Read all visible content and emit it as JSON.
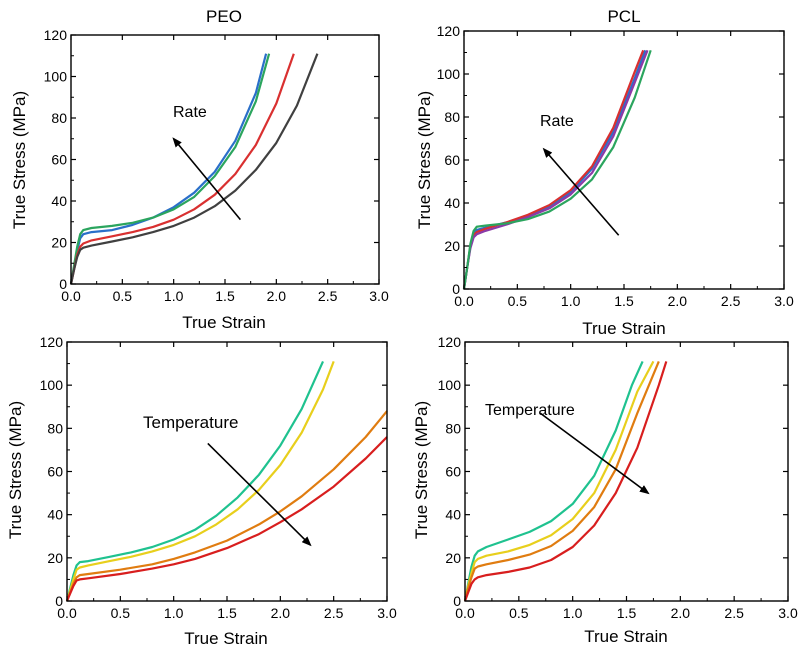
{
  "chart_data": [
    {
      "type": "line",
      "title": "PEO",
      "xlabel": "True Strain",
      "ylabel": "True Stress (MPa)",
      "xlim": [
        0,
        3.0
      ],
      "ylim": [
        0,
        120
      ],
      "xticks": [
        "0.0",
        "0.5",
        "1.0",
        "1.5",
        "2.0",
        "2.5",
        "3.0"
      ],
      "yticks": [
        "0",
        "20",
        "40",
        "60",
        "80",
        "100",
        "120"
      ],
      "grid": false,
      "annotation": {
        "text": "Rate",
        "arrow_from": [
          1.65,
          31
        ],
        "arrow_to": [
          1.0,
          70
        ]
      },
      "series": [
        {
          "color": "#2a6fc9",
          "x": [
            0,
            0.03,
            0.06,
            0.09,
            0.12,
            0.2,
            0.4,
            0.6,
            0.8,
            1.0,
            1.2,
            1.4,
            1.6,
            1.8,
            1.9
          ],
          "y": [
            0,
            8,
            16,
            22,
            24,
            25,
            26,
            28.5,
            32,
            37,
            44,
            54,
            69,
            92,
            111
          ]
        },
        {
          "color": "#2ba55e",
          "x": [
            0,
            0.03,
            0.06,
            0.09,
            0.12,
            0.2,
            0.4,
            0.6,
            0.8,
            1.0,
            1.2,
            1.4,
            1.6,
            1.8,
            1.93
          ],
          "y": [
            0,
            9,
            18,
            24,
            26,
            27,
            28,
            29.5,
            32,
            36,
            42,
            52,
            66,
            88,
            111
          ]
        },
        {
          "color": "#d93030",
          "x": [
            0,
            0.03,
            0.06,
            0.09,
            0.12,
            0.2,
            0.4,
            0.6,
            0.8,
            1.0,
            1.2,
            1.4,
            1.6,
            1.8,
            2.0,
            2.17
          ],
          "y": [
            0,
            7,
            14,
            18,
            19.5,
            21,
            23,
            25,
            27.5,
            31,
            36,
            43,
            53,
            67,
            87,
            111
          ]
        },
        {
          "color": "#404040",
          "x": [
            0,
            0.03,
            0.06,
            0.09,
            0.12,
            0.2,
            0.4,
            0.6,
            0.8,
            1.0,
            1.2,
            1.4,
            1.6,
            1.8,
            2.0,
            2.2,
            2.4
          ],
          "y": [
            0,
            7,
            13,
            16.5,
            17.5,
            18.5,
            20.5,
            22.5,
            25,
            28,
            32,
            37.5,
            45,
            55,
            68,
            86,
            111
          ]
        }
      ]
    },
    {
      "type": "line",
      "title": "PCL",
      "xlabel": "True Strain",
      "ylabel": "True Stress (MPa)",
      "xlim": [
        0,
        3.0
      ],
      "ylim": [
        0,
        120
      ],
      "xticks": [
        "0.0",
        "0.5",
        "1.0",
        "1.5",
        "2.0",
        "2.5",
        "3.0"
      ],
      "yticks": [
        "0",
        "20",
        "40",
        "60",
        "80",
        "100",
        "120"
      ],
      "grid": false,
      "annotation": {
        "text": "Rate",
        "arrow_from": [
          1.45,
          25
        ],
        "arrow_to": [
          0.75,
          65
        ]
      },
      "series": [
        {
          "color": "#2a6fc9",
          "x": [
            0,
            0.03,
            0.06,
            0.09,
            0.12,
            0.2,
            0.4,
            0.6,
            0.8,
            1.0,
            1.2,
            1.4,
            1.6,
            1.7
          ],
          "y": [
            0,
            10,
            20,
            26,
            27.5,
            28.5,
            31,
            34,
            38,
            45,
            56,
            73,
            98,
            111
          ]
        },
        {
          "color": "#d93030",
          "x": [
            0,
            0.03,
            0.06,
            0.09,
            0.12,
            0.2,
            0.4,
            0.6,
            0.8,
            1.0,
            1.2,
            1.4,
            1.6,
            1.68
          ],
          "y": [
            0,
            10,
            20,
            25,
            26.5,
            28,
            31,
            34.5,
            39,
            46,
            57,
            75,
            101,
            111
          ]
        },
        {
          "color": "#8a3aa8",
          "x": [
            0,
            0.03,
            0.06,
            0.09,
            0.12,
            0.2,
            0.4,
            0.6,
            0.8,
            1.0,
            1.2,
            1.4,
            1.6,
            1.72
          ],
          "y": [
            0,
            10,
            19,
            24,
            25.5,
            27,
            30,
            33.5,
            37.5,
            44,
            54,
            71,
            96,
            111
          ]
        },
        {
          "color": "#2ba55e",
          "x": [
            0,
            0.03,
            0.06,
            0.09,
            0.12,
            0.2,
            0.4,
            0.6,
            0.8,
            1.0,
            1.2,
            1.4,
            1.6,
            1.75
          ],
          "y": [
            0,
            10,
            21,
            27,
            29,
            29.5,
            30.5,
            32.5,
            36,
            42,
            51,
            66,
            89,
            111
          ]
        }
      ]
    },
    {
      "type": "line",
      "title": "",
      "xlabel": "True Strain",
      "ylabel": "True Stress (MPa)",
      "xlim": [
        0,
        3.0
      ],
      "ylim": [
        0,
        120
      ],
      "xticks": [
        "0.0",
        "0.5",
        "1.0",
        "1.5",
        "2.0",
        "2.5",
        "3.0"
      ],
      "yticks": [
        "0",
        "20",
        "40",
        "60",
        "80",
        "100",
        "120"
      ],
      "grid": false,
      "annotation": {
        "text": "Temperature",
        "arrow_from": [
          1.32,
          73
        ],
        "arrow_to": [
          2.28,
          26
        ]
      },
      "series": [
        {
          "color": "#1fc28f",
          "x": [
            0,
            0.03,
            0.06,
            0.09,
            0.12,
            0.2,
            0.4,
            0.6,
            0.8,
            1.0,
            1.2,
            1.4,
            1.6,
            1.8,
            2.0,
            2.2,
            2.4
          ],
          "y": [
            0,
            6,
            12,
            16.5,
            18,
            18.5,
            20.5,
            22.5,
            25,
            28.5,
            33,
            39.5,
            48,
            58.5,
            72,
            89,
            111
          ]
        },
        {
          "color": "#e8cf1c",
          "x": [
            0,
            0.03,
            0.06,
            0.09,
            0.12,
            0.2,
            0.4,
            0.6,
            0.8,
            1.0,
            1.2,
            1.4,
            1.6,
            1.8,
            2.0,
            2.2,
            2.4,
            2.5
          ],
          "y": [
            0,
            5,
            10,
            14.5,
            15.5,
            16.5,
            18.5,
            20.5,
            23,
            26,
            30,
            35.5,
            42.5,
            51.5,
            63,
            78,
            98,
            111
          ]
        },
        {
          "color": "#e07c10",
          "x": [
            0,
            0.03,
            0.06,
            0.09,
            0.12,
            0.2,
            0.5,
            0.8,
            1.0,
            1.2,
            1.5,
            1.8,
            2.0,
            2.2,
            2.5,
            2.8,
            3.0
          ],
          "y": [
            0,
            4,
            8,
            11,
            12,
            12.5,
            14.5,
            17,
            19.5,
            22.5,
            28,
            35.5,
            41.5,
            48.5,
            61,
            76,
            88
          ]
        },
        {
          "color": "#d81e1e",
          "x": [
            0,
            0.03,
            0.06,
            0.09,
            0.12,
            0.2,
            0.5,
            0.8,
            1.0,
            1.2,
            1.5,
            1.8,
            2.0,
            2.2,
            2.5,
            2.8,
            3.0
          ],
          "y": [
            0,
            3.5,
            7,
            9.5,
            10,
            10.5,
            12.5,
            15,
            17,
            19.5,
            24.5,
            31,
            36.5,
            42.5,
            53,
            66,
            76
          ]
        }
      ]
    },
    {
      "type": "line",
      "title": "",
      "xlabel": "True Strain",
      "ylabel": "True Stress (MPa)",
      "xlim": [
        0,
        3.0
      ],
      "ylim": [
        0,
        120
      ],
      "xticks": [
        "0.0",
        "0.5",
        "1.0",
        "1.5",
        "2.0",
        "2.5",
        "3.0"
      ],
      "yticks": [
        "0",
        "20",
        "40",
        "60",
        "80",
        "100",
        "120"
      ],
      "grid": false,
      "annotation": {
        "text": "Temperature",
        "arrow_from": [
          0.7,
          87
        ],
        "arrow_to": [
          1.7,
          50
        ]
      },
      "series": [
        {
          "color": "#1fc28f",
          "x": [
            0,
            0.03,
            0.06,
            0.09,
            0.12,
            0.2,
            0.4,
            0.6,
            0.8,
            1.0,
            1.2,
            1.4,
            1.55,
            1.65
          ],
          "y": [
            0,
            8,
            16,
            21,
            23,
            25,
            28.5,
            32,
            37,
            45,
            58,
            79,
            100,
            111
          ]
        },
        {
          "color": "#e8cf1c",
          "x": [
            0,
            0.03,
            0.06,
            0.09,
            0.12,
            0.2,
            0.4,
            0.6,
            0.8,
            1.0,
            1.2,
            1.4,
            1.6,
            1.75
          ],
          "y": [
            0,
            7,
            13,
            18,
            19.5,
            21,
            23,
            26,
            30.5,
            38,
            50,
            70,
            97,
            111
          ]
        },
        {
          "color": "#e07c10",
          "x": [
            0,
            0.03,
            0.06,
            0.09,
            0.12,
            0.2,
            0.4,
            0.6,
            0.8,
            1.0,
            1.2,
            1.4,
            1.6,
            1.8
          ],
          "y": [
            0,
            6,
            11,
            15,
            16,
            17,
            19,
            21.5,
            25.5,
            32.5,
            43.5,
            61,
            87,
            111
          ]
        },
        {
          "color": "#d81e1e",
          "x": [
            0,
            0.03,
            0.06,
            0.09,
            0.12,
            0.2,
            0.4,
            0.6,
            0.8,
            1.0,
            1.2,
            1.4,
            1.6,
            1.8,
            1.87
          ],
          "y": [
            0,
            4,
            8,
            10,
            11,
            12,
            13.5,
            15.5,
            19,
            25,
            35,
            50,
            71,
            100,
            111
          ]
        }
      ]
    }
  ]
}
